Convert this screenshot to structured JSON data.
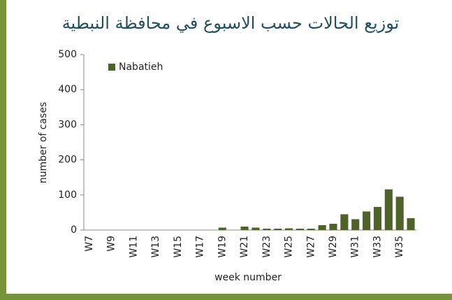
{
  "chart_data": {
    "type": "bar",
    "title": "توزيع الحالات حسب الاسبوع  في محافظة النبطية",
    "categories": [
      "W7",
      null,
      "W9",
      null,
      "W11",
      null,
      "W13",
      null,
      "W15",
      null,
      "W17",
      null,
      "W19",
      null,
      "W21",
      null,
      "W23",
      null,
      "W25",
      null,
      "W27",
      null,
      "W29",
      null,
      "W31",
      null,
      "W33",
      null,
      "W35",
      null
    ],
    "series": [
      {
        "name": "Nabatieh",
        "color": "#4f6228",
        "values": [
          0,
          0,
          0,
          0,
          0,
          0,
          0,
          0,
          0,
          0,
          0,
          0,
          7,
          0,
          10,
          7,
          4,
          4,
          5,
          4,
          4,
          14,
          18,
          45,
          31,
          53,
          66,
          116,
          95,
          34
        ]
      }
    ],
    "xlabel": "week number",
    "ylabel": "number of cases",
    "ylim": [
      0,
      500
    ],
    "yticks": [
      0,
      100,
      200,
      300,
      400,
      500
    ],
    "grid": false,
    "legend": "top-left"
  }
}
